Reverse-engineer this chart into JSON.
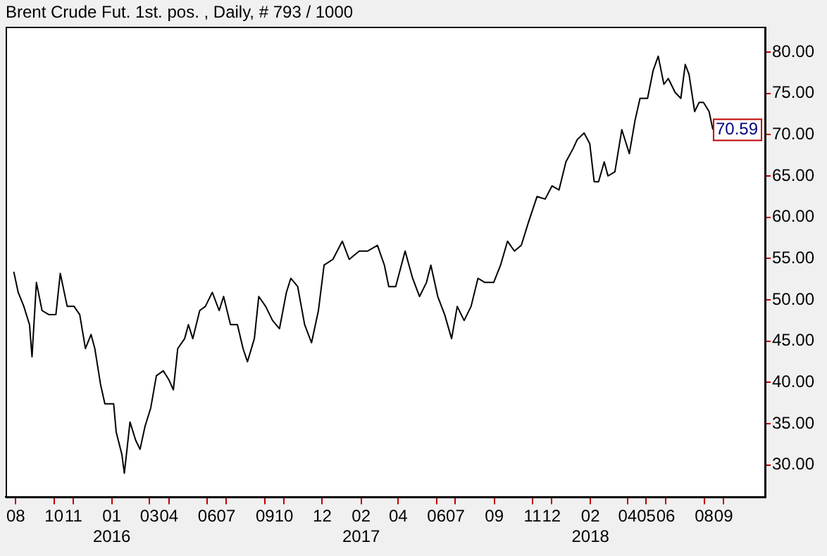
{
  "chart_data": {
    "type": "line",
    "title": "Brent Crude Fut. 1st. pos. , Daily, # 793 / 1000",
    "x": [
      "2015-07-29",
      "2015-08-05",
      "2015-08-14",
      "2015-08-23",
      "2015-08-27",
      "2015-09-03",
      "2015-09-12",
      "2015-09-23",
      "2015-10-04",
      "2015-10-11",
      "2015-10-22",
      "2015-11-02",
      "2015-11-11",
      "2015-11-20",
      "2015-11-29",
      "2015-12-05",
      "2015-12-14",
      "2015-12-21",
      "2016-01-04",
      "2016-01-08",
      "2016-01-17",
      "2016-01-21",
      "2016-01-30",
      "2016-02-08",
      "2016-02-15",
      "2016-02-23",
      "2016-03-03",
      "2016-03-12",
      "2016-03-23",
      "2016-04-01",
      "2016-04-08",
      "2016-04-15",
      "2016-04-26",
      "2016-05-02",
      "2016-05-09",
      "2016-05-20",
      "2016-05-29",
      "2016-06-09",
      "2016-06-20",
      "2016-06-27",
      "2016-07-08",
      "2016-07-19",
      "2016-07-28",
      "2016-08-04",
      "2016-08-15",
      "2016-08-22",
      "2016-09-02",
      "2016-09-13",
      "2016-09-24",
      "2016-10-05",
      "2016-10-12",
      "2016-10-23",
      "2016-11-03",
      "2016-11-14",
      "2016-11-25",
      "2016-12-04",
      "2016-12-18",
      "2017-01-02",
      "2017-01-13",
      "2017-01-29",
      "2017-02-11",
      "2017-02-27",
      "2017-03-10",
      "2017-03-17",
      "2017-03-28",
      "2017-04-12",
      "2017-04-24",
      "2017-05-05",
      "2017-05-16",
      "2017-05-23",
      "2017-06-03",
      "2017-06-14",
      "2017-06-25",
      "2017-07-04",
      "2017-07-15",
      "2017-07-26",
      "2017-08-06",
      "2017-08-17",
      "2017-08-31",
      "2017-09-11",
      "2017-09-22",
      "2017-10-03",
      "2017-10-14",
      "2017-10-25",
      "2017-11-08",
      "2017-11-21",
      "2017-12-02",
      "2017-12-13",
      "2017-12-24",
      "2018-01-05",
      "2018-01-11",
      "2018-01-22",
      "2018-01-31",
      "2018-02-07",
      "2018-02-14",
      "2018-02-23",
      "2018-03-01",
      "2018-03-12",
      "2018-03-23",
      "2018-04-04",
      "2018-04-13",
      "2018-04-21",
      "2018-05-03",
      "2018-05-12",
      "2018-05-20",
      "2018-05-29",
      "2018-06-05",
      "2018-06-16",
      "2018-06-25",
      "2018-07-02",
      "2018-07-08",
      "2018-07-17",
      "2018-07-24",
      "2018-07-31",
      "2018-08-09",
      "2018-08-15"
    ],
    "series": [
      {
        "color": "#000000",
        "values": [
          53.4,
          50.9,
          49.2,
          47.0,
          43.1,
          52.1,
          48.7,
          48.2,
          48.2,
          53.2,
          49.2,
          49.2,
          48.2,
          44.1,
          45.8,
          44.1,
          39.8,
          37.4,
          37.4,
          34.0,
          31.3,
          29.0,
          35.2,
          33.0,
          31.9,
          34.7,
          36.9,
          40.8,
          41.4,
          40.3,
          39.1,
          44.1,
          45.3,
          47.0,
          45.3,
          48.7,
          49.2,
          50.9,
          48.7,
          50.4,
          47.0,
          47.0,
          44.1,
          42.5,
          45.3,
          50.4,
          49.2,
          47.5,
          46.5,
          50.9,
          52.6,
          51.6,
          47.0,
          44.8,
          48.7,
          54.2,
          54.9,
          57.1,
          54.9,
          55.9,
          55.9,
          56.6,
          54.2,
          51.6,
          51.6,
          55.9,
          52.6,
          50.4,
          52.1,
          54.2,
          50.4,
          48.2,
          45.3,
          49.2,
          47.5,
          49.2,
          52.6,
          52.1,
          52.1,
          54.2,
          57.1,
          55.9,
          56.6,
          59.3,
          62.5,
          62.2,
          63.8,
          63.3,
          66.7,
          68.4,
          69.4,
          70.2,
          68.9,
          64.3,
          64.3,
          66.7,
          65.0,
          65.5,
          70.6,
          67.7,
          71.7,
          74.4,
          74.4,
          77.8,
          79.5,
          76.1,
          76.8,
          75.1,
          74.4,
          78.5,
          77.3,
          72.8,
          73.9,
          73.9,
          72.8,
          70.59
        ]
      }
    ],
    "xlim": [
      "2015-07-16",
      "2018-11-06"
    ],
    "xticks": [
      {
        "value": "2015-08-01",
        "label": "08"
      },
      {
        "value": "2015-10-01",
        "label": "10"
      },
      {
        "value": "2015-11-01",
        "label": "11"
      },
      {
        "value": "2016-01-01",
        "label": "01\n2016"
      },
      {
        "value": "2016-03-01",
        "label": "03"
      },
      {
        "value": "2016-04-01",
        "label": "04"
      },
      {
        "value": "2016-06-01",
        "label": "06"
      },
      {
        "value": "2016-07-01",
        "label": "07"
      },
      {
        "value": "2016-09-01",
        "label": "09"
      },
      {
        "value": "2016-10-01",
        "label": "10"
      },
      {
        "value": "2016-12-01",
        "label": "12"
      },
      {
        "value": "2017-02-01",
        "label": "02\n2017"
      },
      {
        "value": "2017-04-01",
        "label": "04"
      },
      {
        "value": "2017-06-01",
        "label": "06"
      },
      {
        "value": "2017-07-01",
        "label": "07"
      },
      {
        "value": "2017-09-01",
        "label": "09"
      },
      {
        "value": "2017-11-01",
        "label": "11"
      },
      {
        "value": "2017-12-01",
        "label": "12"
      },
      {
        "value": "2018-02-01",
        "label": "02\n2018"
      },
      {
        "value": "2018-04-01",
        "label": "04"
      },
      {
        "value": "2018-05-01",
        "label": "05"
      },
      {
        "value": "2018-06-01",
        "label": "06"
      },
      {
        "value": "2018-08-01",
        "label": "08"
      },
      {
        "value": "2018-09-01",
        "label": "09"
      }
    ],
    "ylim": [
      26.1,
      83.0
    ],
    "yticks": [
      {
        "value": 30,
        "label": "30.00"
      },
      {
        "value": 35,
        "label": "35.00"
      },
      {
        "value": 40,
        "label": "40.00"
      },
      {
        "value": 45,
        "label": "45.00"
      },
      {
        "value": 50,
        "label": "50.00"
      },
      {
        "value": 55,
        "label": "55.00"
      },
      {
        "value": 60,
        "label": "60.00"
      },
      {
        "value": 65,
        "label": "65.00"
      },
      {
        "value": 70,
        "label": "70.00"
      },
      {
        "value": 75,
        "label": "75.00"
      },
      {
        "value": 80,
        "label": "80.00"
      }
    ],
    "annotations": [
      "70.59"
    ],
    "marker": "none",
    "line_style": "solid",
    "legend": false,
    "grid": false
  }
}
